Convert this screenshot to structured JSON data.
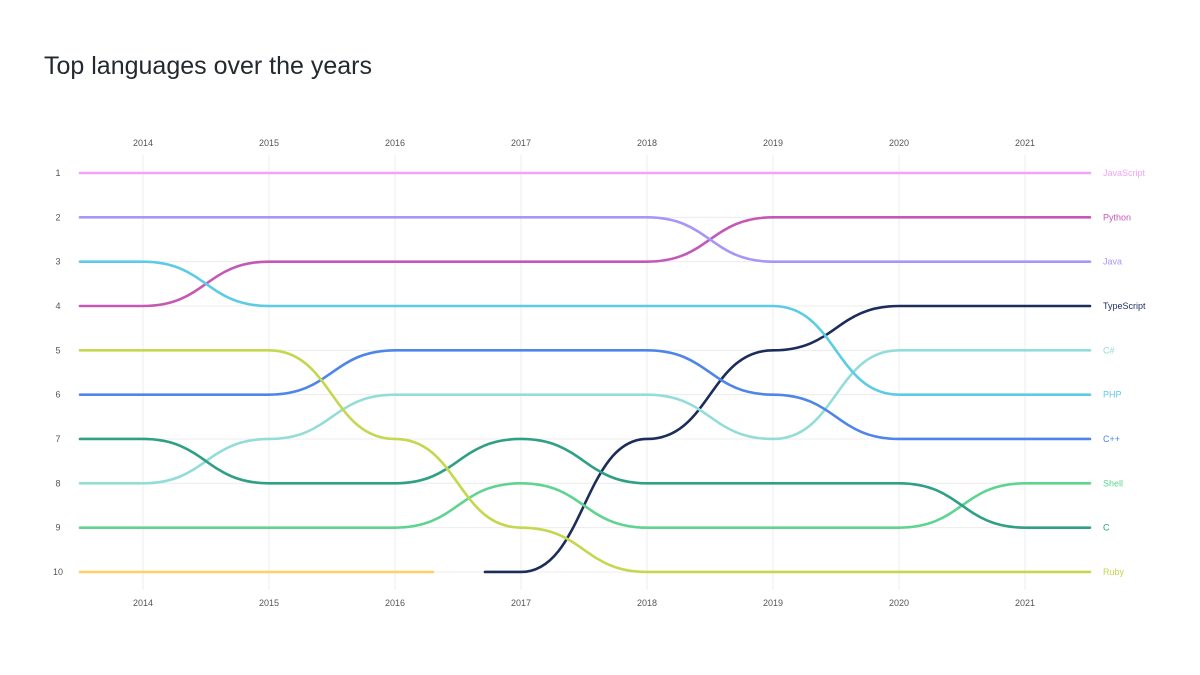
{
  "chart_data": {
    "type": "bump",
    "title": "Top languages over the years",
    "x": [
      2014,
      2015,
      2016,
      2017,
      2018,
      2019,
      2020,
      2021
    ],
    "y_ticks": [
      1,
      2,
      3,
      4,
      5,
      6,
      7,
      8,
      9,
      10
    ],
    "ylim": [
      1,
      10
    ],
    "y_inverted": true,
    "grid": true,
    "legend": "right-end labels",
    "series": [
      {
        "name": "JavaScript",
        "color": "#f2a5f7",
        "values": [
          1,
          1,
          1,
          1,
          1,
          1,
          1,
          1
        ]
      },
      {
        "name": "Python",
        "color": "#c458b6",
        "values": [
          4,
          3,
          3,
          3,
          3,
          2,
          2,
          2
        ]
      },
      {
        "name": "Java",
        "color": "#a796f7",
        "values": [
          2,
          2,
          2,
          2,
          2,
          3,
          3,
          3
        ]
      },
      {
        "name": "TypeScript",
        "color": "#1c2d5c",
        "values": [
          null,
          null,
          null,
          10,
          7,
          5,
          4,
          4
        ]
      },
      {
        "name": "C#",
        "color": "#93ddd9",
        "values": [
          8,
          7,
          6,
          6,
          6,
          7,
          5,
          5
        ]
      },
      {
        "name": "PHP",
        "color": "#5ccbe6",
        "values": [
          3,
          4,
          4,
          4,
          4,
          4,
          6,
          6
        ]
      },
      {
        "name": "C++",
        "color": "#4d86e8",
        "values": [
          6,
          6,
          5,
          5,
          5,
          6,
          7,
          7
        ]
      },
      {
        "name": "Shell",
        "color": "#5fd390",
        "values": [
          9,
          9,
          9,
          8,
          9,
          9,
          9,
          8
        ]
      },
      {
        "name": "C",
        "color": "#2f9f86",
        "values": [
          7,
          8,
          8,
          7,
          8,
          8,
          8,
          9
        ]
      },
      {
        "name": "Ruby",
        "color": "#c5d64f",
        "values": [
          5,
          5,
          7,
          9,
          10,
          10,
          10,
          10
        ]
      },
      {
        "color": "#fdd06b",
        "values": [
          10,
          10,
          10,
          null,
          null,
          null,
          null,
          null
        ]
      }
    ]
  }
}
